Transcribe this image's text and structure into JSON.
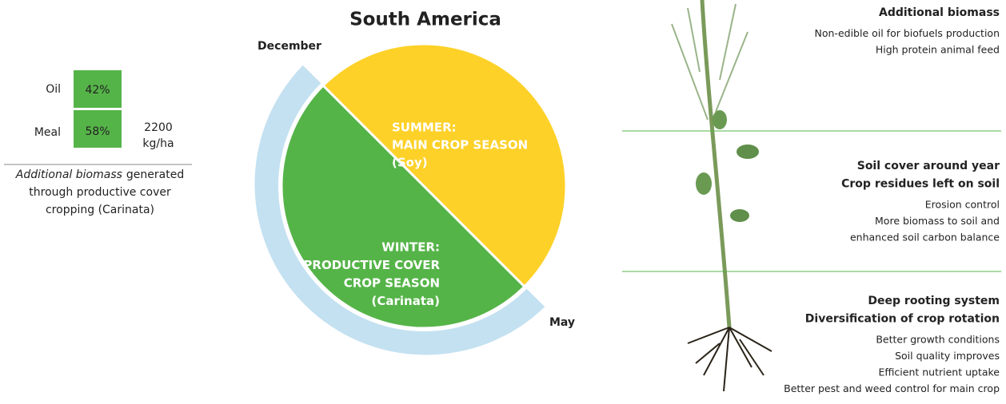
{
  "composition": {
    "oil_label": "Oil",
    "oil_share": "42%",
    "meal_label": "Meal",
    "meal_share": "58%",
    "yield": [
      "2200",
      "kg/ha"
    ],
    "caption": {
      "emphasis": "Additional biomass",
      "lines": [
        "generated",
        "through productive cover",
        "cropping (Carinata)"
      ]
    }
  },
  "cycle": {
    "title": "South America",
    "start_label": "December",
    "end_label": "May",
    "summer": [
      "SUMMER:",
      "MAIN CROP SEASON",
      "(Soy)"
    ],
    "winter": [
      "WINTER:",
      "PRODUCTIVE COVER",
      "CROP SEASON",
      "(Carinata)"
    ]
  },
  "benefits": [
    {
      "headings": [
        "Additional biomass"
      ],
      "items": [
        "Non-edible oil for biofuels production",
        "High protein animal feed"
      ]
    },
    {
      "headings": [
        "Soil cover around year",
        "Crop residues left on soil"
      ],
      "items": [
        "Erosion control",
        "More biomass to soil and",
        "enhanced soil carbon balance"
      ]
    },
    {
      "headings": [
        "Deep rooting system",
        "Diversification of crop rotation"
      ],
      "items": [
        "Better growth conditions",
        "Soil quality improves",
        "Efficient nutrient uptake",
        "Better pest and weed control for main crop"
      ]
    }
  ]
}
